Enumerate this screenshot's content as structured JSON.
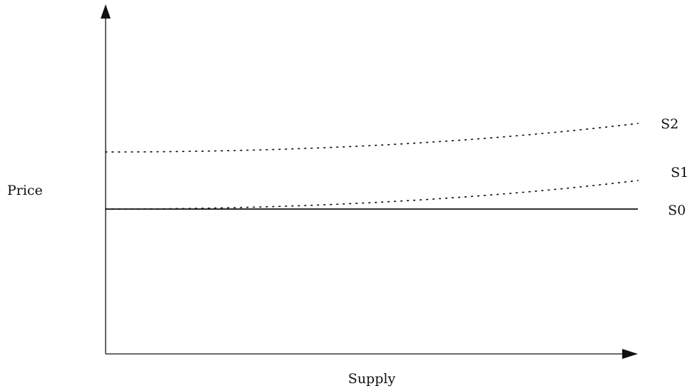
{
  "diagram": {
    "xlabel": "Supply",
    "ylabel": "Price",
    "curves": [
      {
        "label": "S0",
        "style": "solid",
        "start": 0.0,
        "end": 0.0
      },
      {
        "label": "S1",
        "style": "dotted",
        "start": 0.0,
        "end": 0.2
      },
      {
        "label": "S2",
        "style": "dotted",
        "start": 0.4,
        "end": 0.6
      }
    ],
    "colors": {
      "ink": "#111111",
      "background": "#ffffff"
    }
  }
}
